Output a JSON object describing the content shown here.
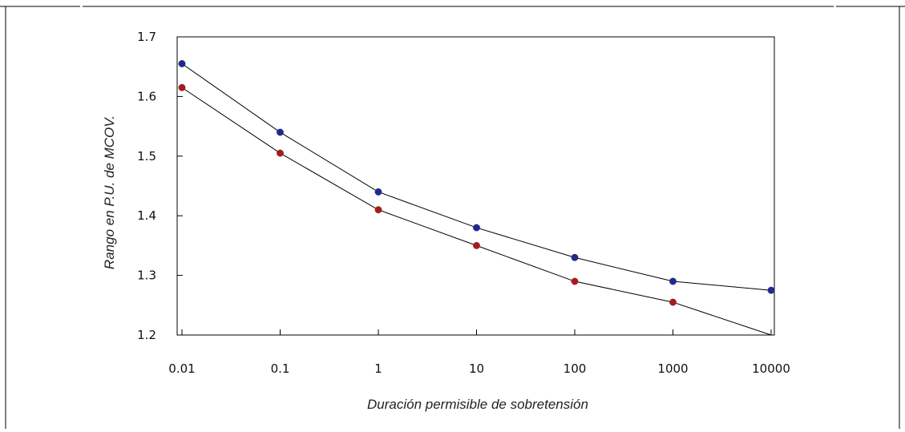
{
  "chart_data": {
    "type": "line",
    "xscale": "log",
    "x": [
      0.01,
      0.1,
      1,
      10,
      100,
      1000,
      10000
    ],
    "x_tick_labels": [
      "0.01",
      "0.1",
      "1",
      "10",
      "100",
      "1000",
      "10000"
    ],
    "y_tick_labels": [
      "1.2",
      "1.3",
      "1.4",
      "1.5",
      "1.6",
      "1.7"
    ],
    "ylim": [
      1.2,
      1.7
    ],
    "xlabel": "Duración permisible de sobretensión",
    "ylabel": "Rango en P.U. de MCOV.",
    "series": [
      {
        "color": "#1f2a8c",
        "values": [
          1.655,
          1.54,
          1.44,
          1.38,
          1.33,
          1.29,
          1.275
        ]
      },
      {
        "color": "#a31d20",
        "values": [
          1.615,
          1.505,
          1.41,
          1.35,
          1.29,
          1.255,
          1.2
        ]
      }
    ],
    "grid": false,
    "line_color": "#000000"
  }
}
